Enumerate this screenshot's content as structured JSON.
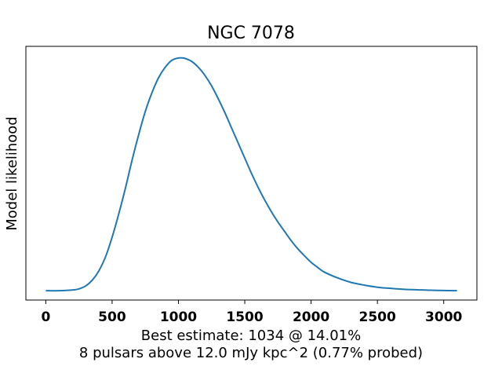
{
  "chart_data": {
    "type": "line",
    "title": "NGC 7078",
    "ylabel": "Model likelihood",
    "xlabel_lines": [
      "Best estimate: 1034 @ 14.01%",
      "8 pulsars above 12.0 mJy kpc^2 (0.77% probed)"
    ],
    "xlim": [
      -150,
      3250
    ],
    "ylim": [
      -0.04,
      1.05
    ],
    "xticks": [
      0,
      500,
      1000,
      1500,
      2000,
      2500,
      3000
    ],
    "xtick_labels": [
      "0",
      "500",
      "1000",
      "1500",
      "2000",
      "2500",
      "3000"
    ],
    "yticks_shown": false,
    "grid": false,
    "legend": "none",
    "line_color": "#1f77b4",
    "series": [
      {
        "x": [
          0,
          100,
          200,
          250,
          300,
          350,
          400,
          450,
          500,
          550,
          600,
          650,
          700,
          750,
          800,
          850,
          900,
          950,
          1000,
          1034,
          1050,
          1100,
          1150,
          1200,
          1250,
          1300,
          1350,
          1400,
          1450,
          1500,
          1550,
          1600,
          1650,
          1700,
          1750,
          1800,
          1850,
          1900,
          1950,
          2000,
          2050,
          2100,
          2200,
          2300,
          2400,
          2500,
          2600,
          2700,
          2800,
          2900,
          3000,
          3100
        ],
        "y": [
          0.0,
          0.0,
          0.003,
          0.008,
          0.02,
          0.045,
          0.085,
          0.145,
          0.23,
          0.33,
          0.44,
          0.56,
          0.67,
          0.77,
          0.85,
          0.915,
          0.96,
          0.99,
          1.0,
          1.0,
          0.998,
          0.985,
          0.96,
          0.925,
          0.88,
          0.825,
          0.765,
          0.7,
          0.635,
          0.57,
          0.505,
          0.445,
          0.39,
          0.34,
          0.295,
          0.255,
          0.215,
          0.18,
          0.15,
          0.122,
          0.1,
          0.08,
          0.055,
          0.036,
          0.024,
          0.015,
          0.01,
          0.006,
          0.004,
          0.002,
          0.001,
          0.0
        ]
      }
    ]
  }
}
